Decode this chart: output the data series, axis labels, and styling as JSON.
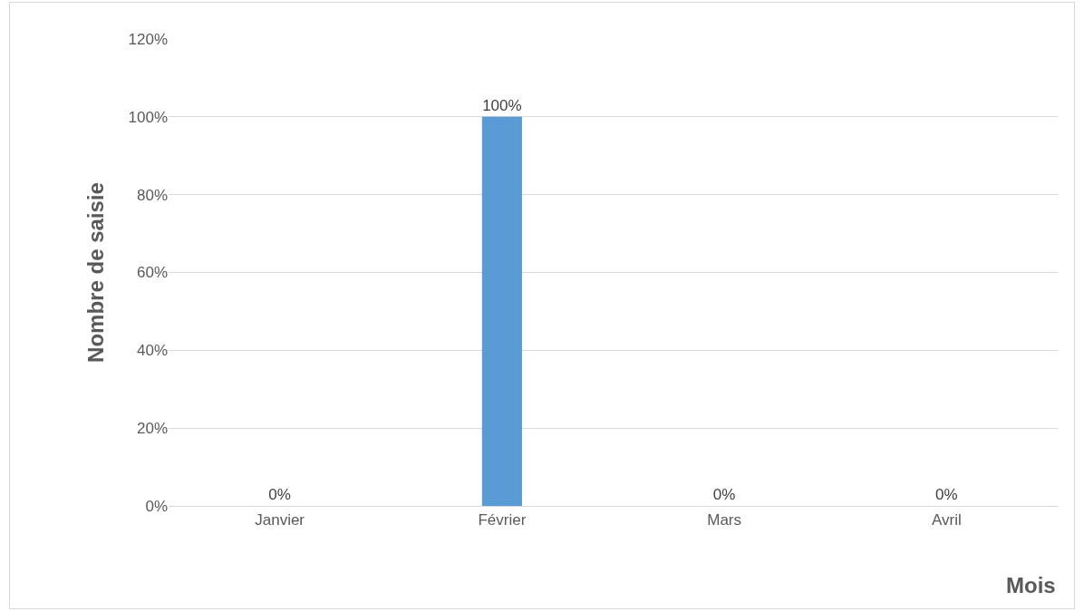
{
  "chart_data": {
    "type": "bar",
    "xlabel": "Mois",
    "ylabel": "Nombre de saisie",
    "categories": [
      "Janvier",
      "Février",
      "Mars",
      "Avril"
    ],
    "values": [
      0,
      100,
      0,
      0
    ],
    "value_labels": [
      "0%",
      "100%",
      "0%",
      "0%"
    ],
    "color": "#5b9bd5",
    "ylim": [
      0,
      120
    ],
    "yticks": [
      {
        "value": 0,
        "label": "0%"
      },
      {
        "value": 20,
        "label": "20%"
      },
      {
        "value": 40,
        "label": "40%"
      },
      {
        "value": 60,
        "label": "60%"
      },
      {
        "value": 80,
        "label": "80%"
      },
      {
        "value": 100,
        "label": "100%"
      },
      {
        "value": 120,
        "label": "120%"
      }
    ],
    "grid": "y"
  }
}
